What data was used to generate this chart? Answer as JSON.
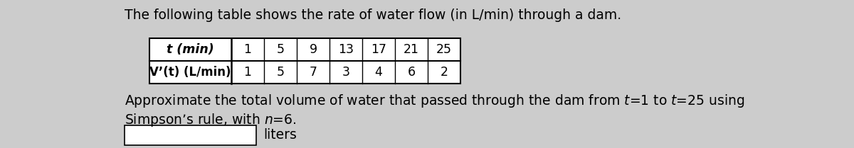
{
  "title": "The following table shows the rate of water flow (in L/min) through a dam.",
  "t_label": "t (min)",
  "v_label": "V’(t) (L/min)",
  "t_values": [
    "1",
    "5",
    "9",
    "13",
    "17",
    "21",
    "25"
  ],
  "v_values": [
    "1",
    "5",
    "7",
    "3",
    "4",
    "6",
    "2"
  ],
  "body_line1": "Approximate the total volume of water that passed through the dam from $t$=1 to $t$=25 using",
  "body_line2": "Simpson’s rule, with $n$=6.",
  "units_label": "liters",
  "bg_color": "#cccccc",
  "font_size_title": 13.5,
  "font_size_table": 12.5,
  "font_size_body": 13.5,
  "font_size_units": 13.5
}
